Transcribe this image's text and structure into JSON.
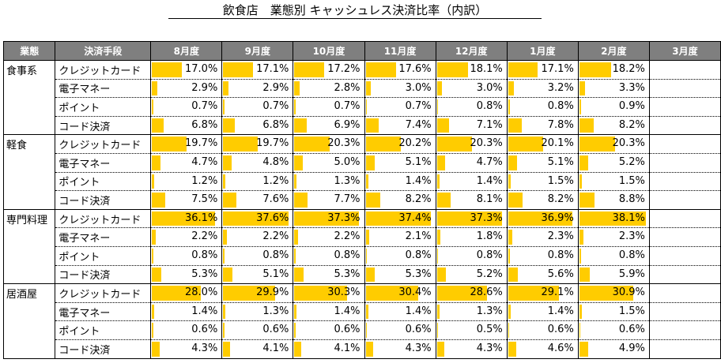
{
  "title": "飲食店　業態別 キャッシュレス決済比率（内訳）",
  "headers": {
    "business": "業態",
    "method": "決済手段"
  },
  "colors": {
    "header_bg": "#7f7f7f",
    "bar": "#ffcc00"
  },
  "chart_data": {
    "type": "table",
    "months": [
      "8月度",
      "9月度",
      "10月度",
      "11月度",
      "12月度",
      "1月度",
      "2月度",
      "3月度"
    ],
    "unit": "%",
    "bar_max": 40,
    "groups": [
      {
        "name": "食事系",
        "rows": [
          {
            "method": "クレジットカード",
            "values": [
              17.0,
              17.1,
              17.2,
              17.6,
              18.1,
              17.1,
              18.2,
              null
            ]
          },
          {
            "method": "電子マネー",
            "values": [
              2.9,
              2.9,
              2.8,
              3.0,
              3.0,
              3.2,
              3.3,
              null
            ]
          },
          {
            "method": "ポイント",
            "values": [
              0.7,
              0.7,
              0.7,
              0.7,
              0.8,
              0.8,
              0.9,
              null
            ]
          },
          {
            "method": "コード決済",
            "values": [
              6.8,
              6.8,
              6.9,
              7.4,
              7.1,
              7.8,
              8.2,
              null
            ]
          }
        ]
      },
      {
        "name": "軽食",
        "rows": [
          {
            "method": "クレジットカード",
            "values": [
              19.7,
              19.7,
              20.3,
              20.2,
              20.3,
              20.1,
              20.3,
              null
            ]
          },
          {
            "method": "電子マネー",
            "values": [
              4.7,
              4.8,
              5.0,
              5.1,
              4.7,
              5.1,
              5.2,
              null
            ]
          },
          {
            "method": "ポイント",
            "values": [
              1.2,
              1.2,
              1.3,
              1.4,
              1.4,
              1.5,
              1.5,
              null
            ]
          },
          {
            "method": "コード決済",
            "values": [
              7.5,
              7.6,
              7.7,
              8.2,
              8.1,
              8.2,
              8.8,
              null
            ]
          }
        ]
      },
      {
        "name": "専門料理",
        "rows": [
          {
            "method": "クレジットカード",
            "values": [
              36.1,
              37.6,
              37.3,
              37.4,
              37.3,
              36.9,
              38.1,
              null
            ]
          },
          {
            "method": "電子マネー",
            "values": [
              2.2,
              2.2,
              2.2,
              2.1,
              1.8,
              2.3,
              2.3,
              null
            ]
          },
          {
            "method": "ポイント",
            "values": [
              0.8,
              0.8,
              0.8,
              0.8,
              0.8,
              0.8,
              0.8,
              null
            ]
          },
          {
            "method": "コード決済",
            "values": [
              5.3,
              5.1,
              5.3,
              5.3,
              5.2,
              5.6,
              5.9,
              null
            ]
          }
        ]
      },
      {
        "name": "居酒屋",
        "rows": [
          {
            "method": "クレジットカード",
            "values": [
              28.0,
              29.9,
              30.3,
              30.4,
              28.6,
              29.1,
              30.9,
              null
            ]
          },
          {
            "method": "電子マネー",
            "values": [
              1.4,
              1.3,
              1.4,
              1.4,
              1.3,
              1.4,
              1.5,
              null
            ]
          },
          {
            "method": "ポイント",
            "values": [
              0.6,
              0.6,
              0.6,
              0.6,
              0.5,
              0.6,
              0.6,
              null
            ]
          },
          {
            "method": "コード決済",
            "values": [
              4.3,
              4.1,
              4.1,
              4.3,
              4.3,
              4.6,
              4.9,
              null
            ]
          }
        ]
      }
    ]
  }
}
